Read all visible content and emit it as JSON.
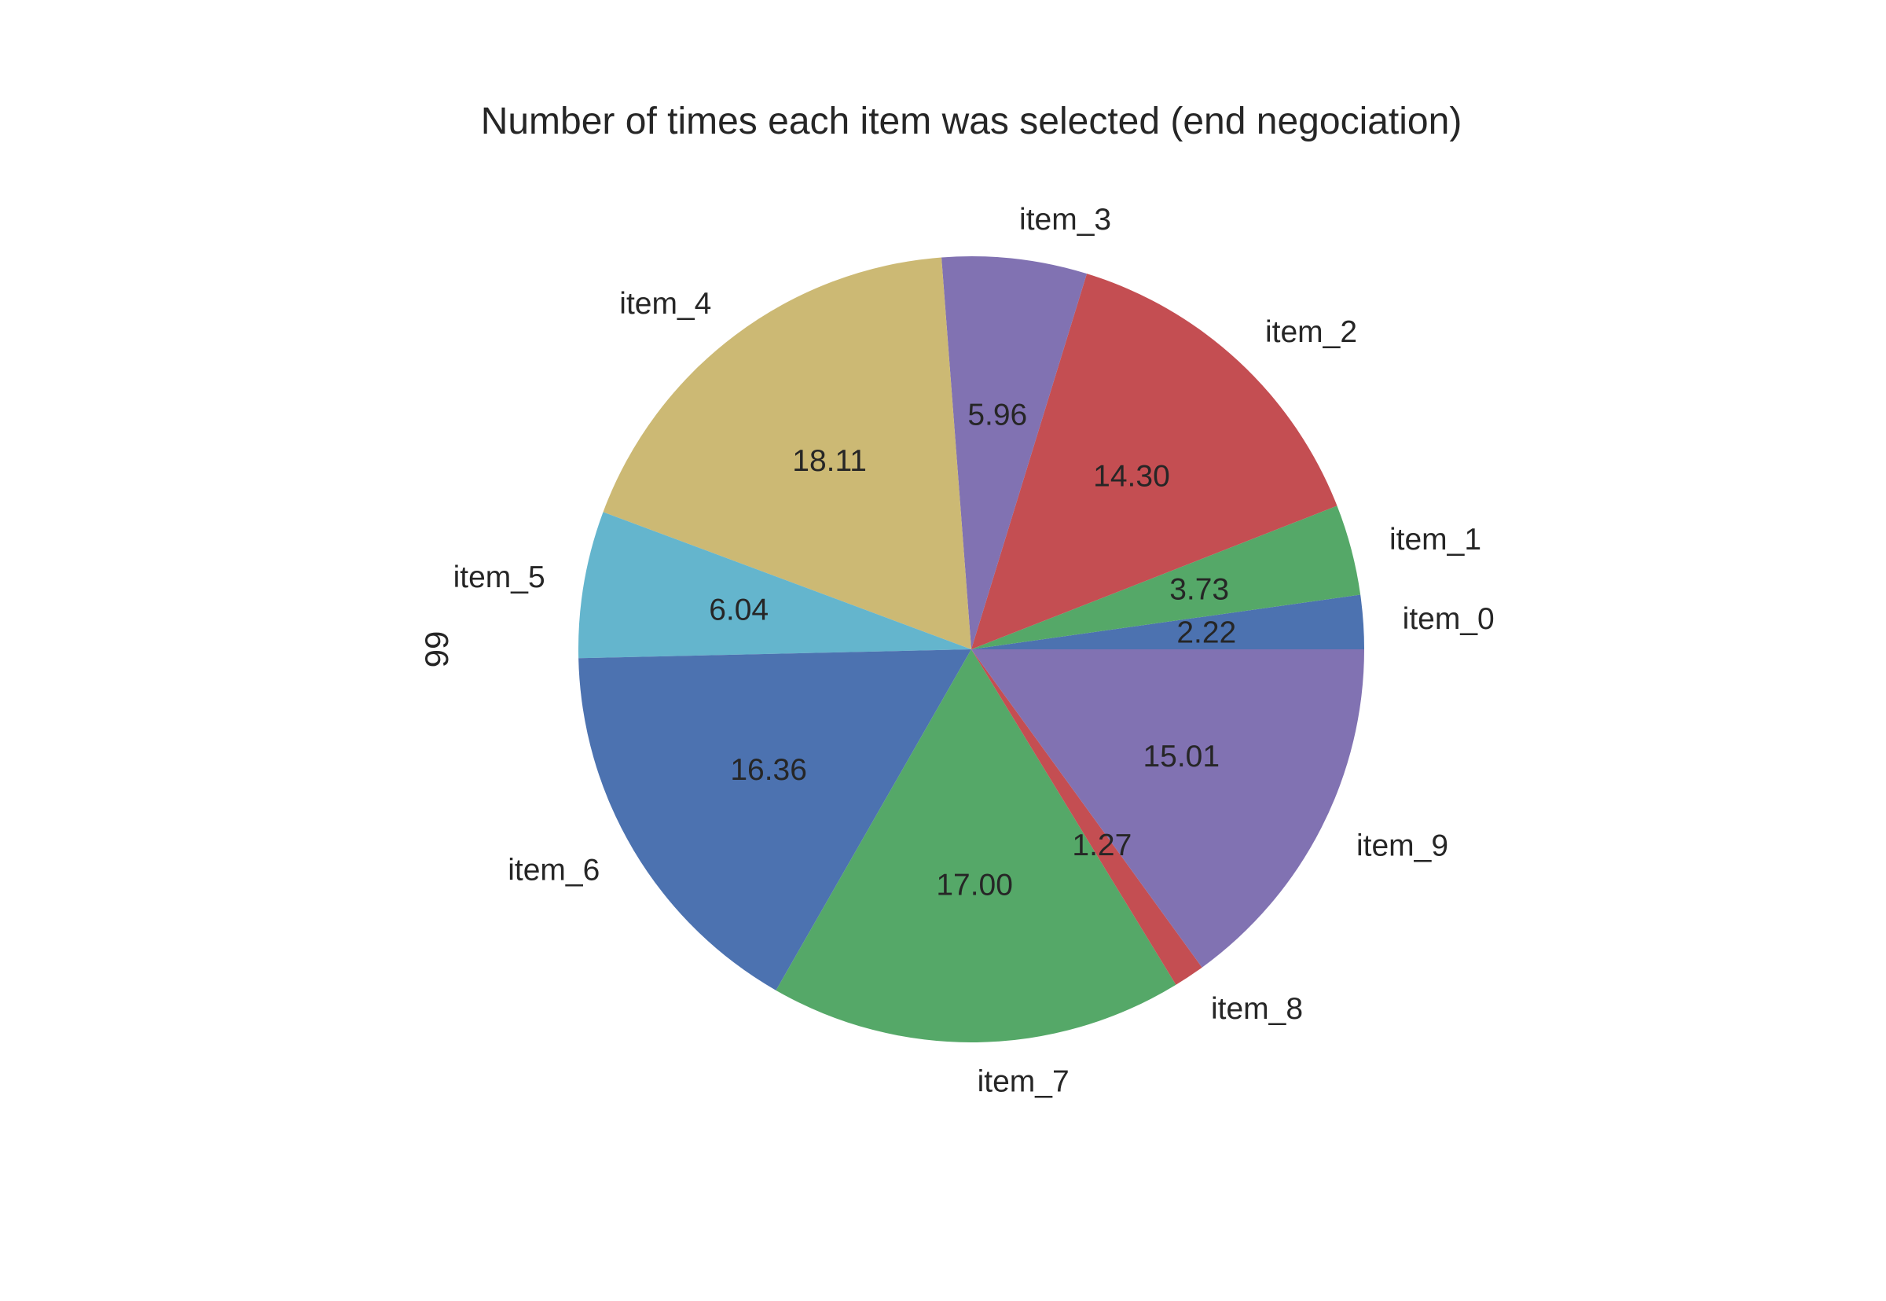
{
  "chart_data": {
    "type": "pie",
    "title": "Number of times each item was selected (end negociation)",
    "ylabel": "99",
    "categories": [
      "item_0",
      "item_1",
      "item_2",
      "item_3",
      "item_4",
      "item_5",
      "item_6",
      "item_7",
      "item_8",
      "item_9"
    ],
    "values": [
      2.22,
      3.73,
      14.3,
      5.96,
      18.11,
      6.04,
      16.36,
      17.0,
      1.27,
      15.01
    ],
    "value_labels": [
      "2.22",
      "3.73",
      "14.30",
      "5.96",
      "18.11",
      "6.04",
      "16.36",
      "17.00",
      "1.27",
      "15.01"
    ],
    "colors": [
      "#4c72b0",
      "#55a868",
      "#c44e52",
      "#8172b2",
      "#ccb974",
      "#64b5cd",
      "#4c72b0",
      "#55a868",
      "#c44e52",
      "#8172b2"
    ],
    "start_angle_deg": 0,
    "direction": "counterclockwise",
    "legend": "none",
    "grid": false
  }
}
